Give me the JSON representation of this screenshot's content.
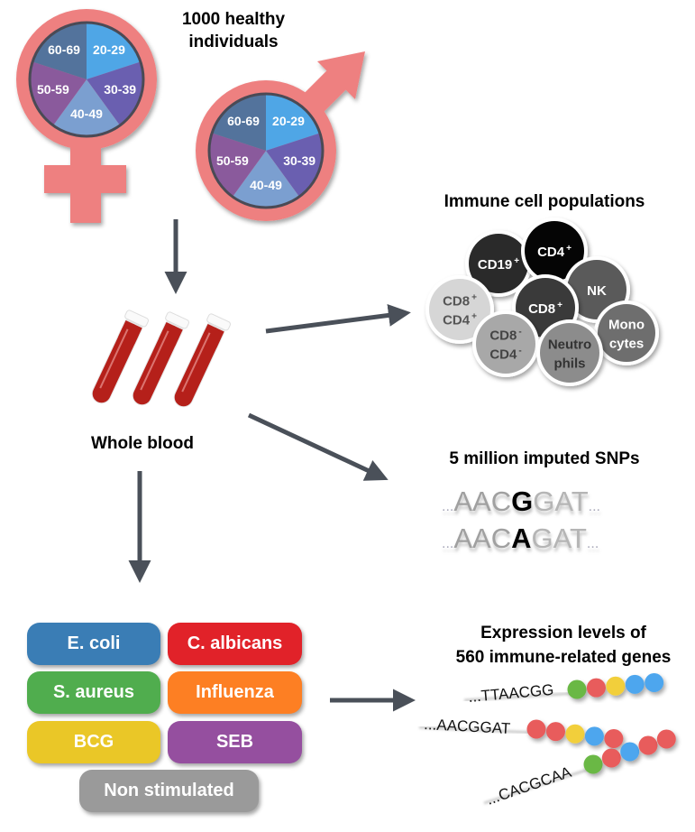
{
  "colors": {
    "symbol_pink": "#ee8080",
    "arrow": "#4a5059",
    "blood": "#b5201a",
    "age_20_29": "#4fa6e6",
    "age_30_39": "#6a5fb0",
    "age_40_49": "#7b9fd0",
    "age_50_59": "#8a5a9c",
    "age_60_69": "#53739c"
  },
  "cohort": {
    "title_line1": "1000 healthy",
    "title_line2": "individuals",
    "female_symbol_icon": "female-symbol-icon",
    "male_symbol_icon": "male-symbol-icon",
    "age_groups": [
      "20-29",
      "30-39",
      "40-49",
      "50-59",
      "60-69"
    ]
  },
  "blood": {
    "label": "Whole blood",
    "icon": "blood-tubes-icon"
  },
  "immune_cells": {
    "title": "Immune cell populations",
    "cells": [
      {
        "id": "cd19",
        "lines": [
          {
            "t": "CD19",
            "s": "+"
          }
        ],
        "fill": "#2a2a2a",
        "text": "#ffffff"
      },
      {
        "id": "cd4",
        "lines": [
          {
            "t": "CD4",
            "s": "+"
          }
        ],
        "fill": "#050505",
        "text": "#ffffff"
      },
      {
        "id": "nk",
        "lines": [
          {
            "t": "NK",
            "s": ""
          }
        ],
        "fill": "#5a5a5a",
        "text": "#ffffff"
      },
      {
        "id": "cd8cd4-double-positive",
        "lines": [
          {
            "t": "CD8",
            "s": "+"
          },
          {
            "t": "CD4",
            "s": "+"
          }
        ],
        "fill": "#d6d6d6",
        "text": "#555555"
      },
      {
        "id": "cd8",
        "lines": [
          {
            "t": "CD8",
            "s": "+"
          }
        ],
        "fill": "#3a3a3a",
        "text": "#ffffff"
      },
      {
        "id": "cd8cd4-double-negative",
        "lines": [
          {
            "t": "CD8",
            "s": "-"
          },
          {
            "t": "CD4",
            "s": "-"
          }
        ],
        "fill": "#a8a8a8",
        "text": "#444444"
      },
      {
        "id": "monocytes",
        "lines": [
          {
            "t": "Mono",
            "s": ""
          },
          {
            "t": "cytes",
            "s": ""
          }
        ],
        "fill": "#6e6e6e",
        "text": "#ffffff"
      },
      {
        "id": "neutrophils",
        "lines": [
          {
            "t": "Neutro",
            "s": ""
          },
          {
            "t": "phils",
            "s": ""
          }
        ],
        "fill": "#8c8c8c",
        "text": "#333333"
      }
    ]
  },
  "snps": {
    "title": "5 million imputed SNPs",
    "rows": [
      {
        "prefix": "AAC",
        "allele": "G",
        "suffix": "GAT"
      },
      {
        "prefix": "AAC",
        "allele": "A",
        "suffix": "GAT"
      }
    ],
    "ellipsis": "..."
  },
  "stimuli": [
    {
      "label": "E. coli",
      "color": "#3a7db5"
    },
    {
      "label": "C. albicans",
      "color": "#e12229"
    },
    {
      "label": "S. aureus",
      "color": "#50ad4e"
    },
    {
      "label": "Influenza",
      "color": "#fd7f23"
    },
    {
      "label": "BCG",
      "color": "#eac727"
    },
    {
      "label": "SEB",
      "color": "#954f9f"
    },
    {
      "label": "Non stimulated",
      "color": "#9a9a9a"
    }
  ],
  "expression": {
    "title_line1": "Expression levels of",
    "title_line2": "560 immune-related genes",
    "bead_colors": {
      "green": "#6ab845",
      "red": "#e85c5c",
      "yellow": "#f2cf3b",
      "blue": "#4ea6ee"
    },
    "sequences": [
      {
        "text": "...TTAACGG",
        "beads": [
          "green",
          "red",
          "yellow",
          "blue",
          "blue"
        ]
      },
      {
        "text": "...AACGGAT",
        "beads": [
          "red",
          "red",
          "yellow",
          "blue",
          "red"
        ]
      },
      {
        "text": "...CACGCAA",
        "beads": [
          "green",
          "red",
          "blue",
          "red",
          "red"
        ]
      }
    ]
  }
}
